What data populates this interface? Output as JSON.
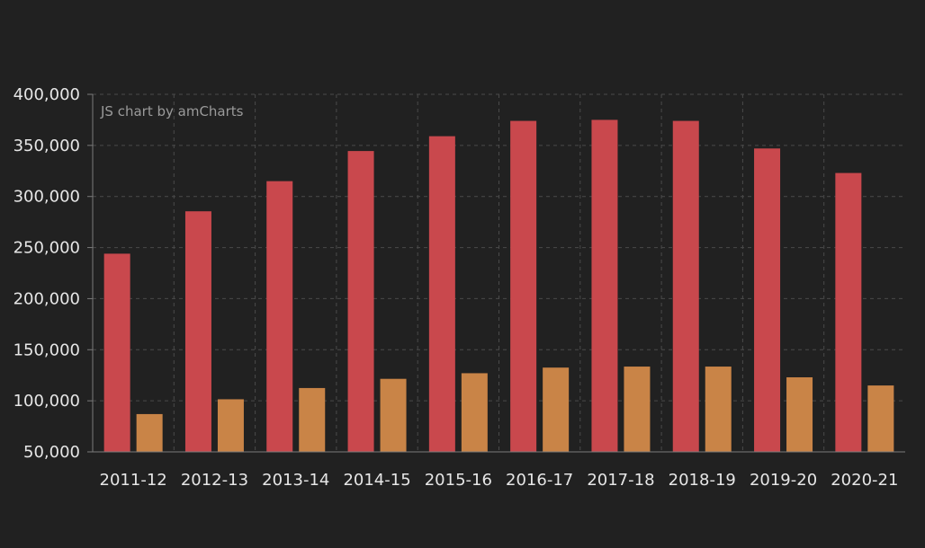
{
  "chart_data": {
    "type": "bar",
    "title": "",
    "xlabel": "",
    "ylabel": "",
    "categories": [
      "2011-12",
      "2012-13",
      "2013-14",
      "2014-15",
      "2015-16",
      "2016-17",
      "2017-18",
      "2018-19",
      "2019-20",
      "2020-21"
    ],
    "series": [
      {
        "color": "#c9484d",
        "values": [
          244000,
          285500,
          315000,
          344500,
          359000,
          374000,
          375000,
          374000,
          347000,
          323000
        ]
      },
      {
        "color": "#c98447",
        "values": [
          87000,
          101500,
          112500,
          121500,
          127000,
          132500,
          133500,
          133500,
          123000,
          115000
        ]
      }
    ],
    "ylim": [
      50000,
      400000
    ],
    "y_ticks": [
      "50,000",
      "100,000",
      "150,000",
      "200,000",
      "250,000",
      "300,000",
      "350,000",
      "400,000"
    ],
    "y_tick_values": [
      50000,
      100000,
      150000,
      200000,
      250000,
      300000,
      350000,
      400000
    ],
    "grid": true,
    "legend": "none",
    "credit": "JS chart by amCharts"
  }
}
